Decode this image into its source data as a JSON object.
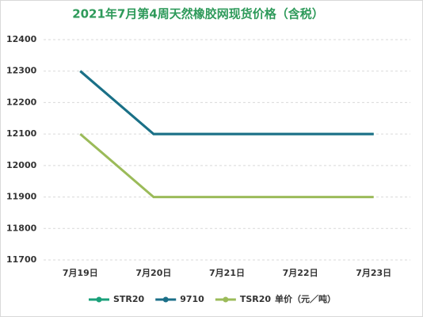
{
  "chart_data": {
    "type": "line",
    "title": "2021年7月第4周天然橡胶网现货价格（含税）",
    "categories": [
      "7月19日",
      "7月20日",
      "7月21日",
      "7月22日",
      "7月23日"
    ],
    "series": [
      {
        "name": "STR20",
        "color": "#1aa07a",
        "values": [
          12300,
          12100,
          12100,
          12100,
          12100
        ]
      },
      {
        "name": "9710",
        "color": "#1b6f88",
        "values": [
          12300,
          12100,
          12100,
          12100,
          12100
        ]
      },
      {
        "name": "TSR20",
        "color": "#9bbb59",
        "values": [
          12100,
          11900,
          11900,
          11900,
          11900
        ]
      }
    ],
    "y_label": "单价（元／吨）",
    "ylim": [
      11700,
      12400
    ],
    "yticks": [
      11700,
      11800,
      11900,
      12000,
      12100,
      12200,
      12300,
      12400
    ],
    "grid": true
  }
}
